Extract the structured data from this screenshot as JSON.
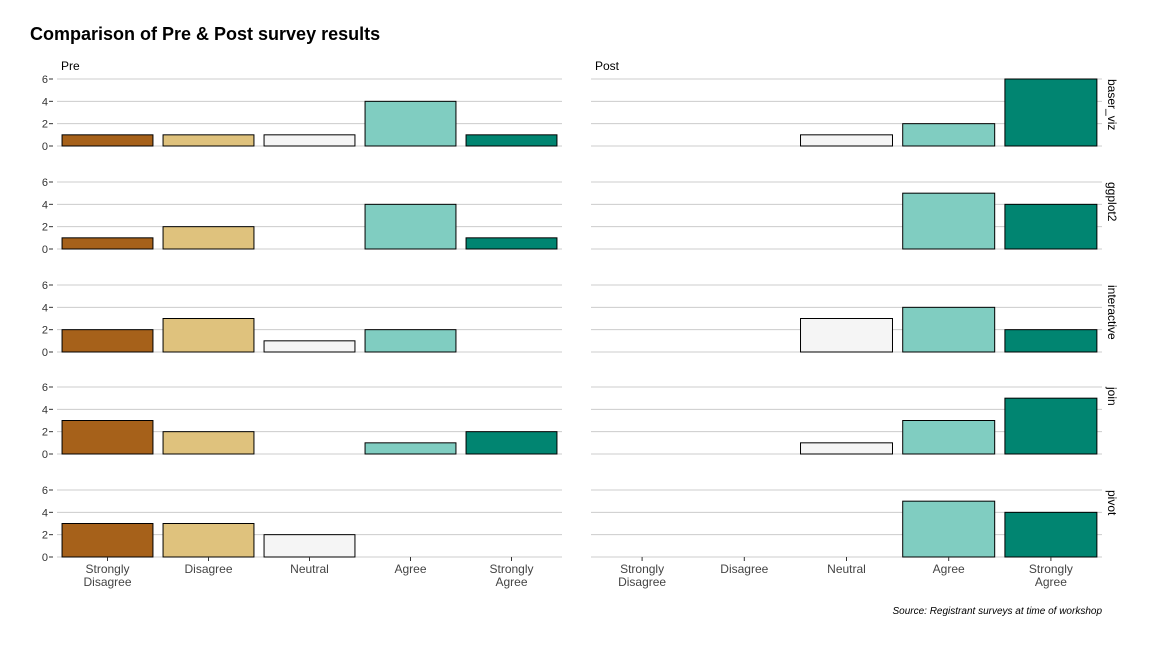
{
  "chart_data": {
    "type": "bar",
    "title": "Comparison of Pre & Post survey results",
    "caption": "Source: Registrant surveys at time of workshop",
    "columns": [
      "Pre",
      "Post"
    ],
    "rows": [
      "baser_viz",
      "ggplot2",
      "interactive",
      "join",
      "pivot"
    ],
    "categories": [
      "Strongly Disagree",
      "Disagree",
      "Neutral",
      "Agree",
      "Strongly Agree"
    ],
    "category_tick_labels": [
      [
        "Strongly",
        "Disagree"
      ],
      [
        "Disagree"
      ],
      [
        "Neutral"
      ],
      [
        "Agree"
      ],
      [
        "Strongly",
        "Agree"
      ]
    ],
    "y_ticks": [
      0,
      2,
      4,
      6
    ],
    "ylim": [
      0,
      6
    ],
    "colors": [
      "#a6611a",
      "#dfc27d",
      "#f5f5f5",
      "#80cdc1",
      "#018571"
    ],
    "grid": true,
    "values": {
      "Pre": {
        "baser_viz": [
          1,
          1,
          1,
          4,
          1
        ],
        "ggplot2": [
          1,
          2,
          0,
          4,
          1
        ],
        "interactive": [
          2,
          3,
          1,
          2,
          0
        ],
        "join": [
          3,
          2,
          0,
          1,
          2
        ],
        "pivot": [
          3,
          3,
          2,
          0,
          0
        ]
      },
      "Post": {
        "baser_viz": [
          0,
          0,
          1,
          2,
          6
        ],
        "ggplot2": [
          0,
          0,
          0,
          5,
          4
        ],
        "interactive": [
          0,
          0,
          3,
          4,
          2
        ],
        "join": [
          0,
          0,
          1,
          3,
          5
        ],
        "pivot": [
          0,
          0,
          0,
          5,
          4
        ]
      }
    }
  }
}
